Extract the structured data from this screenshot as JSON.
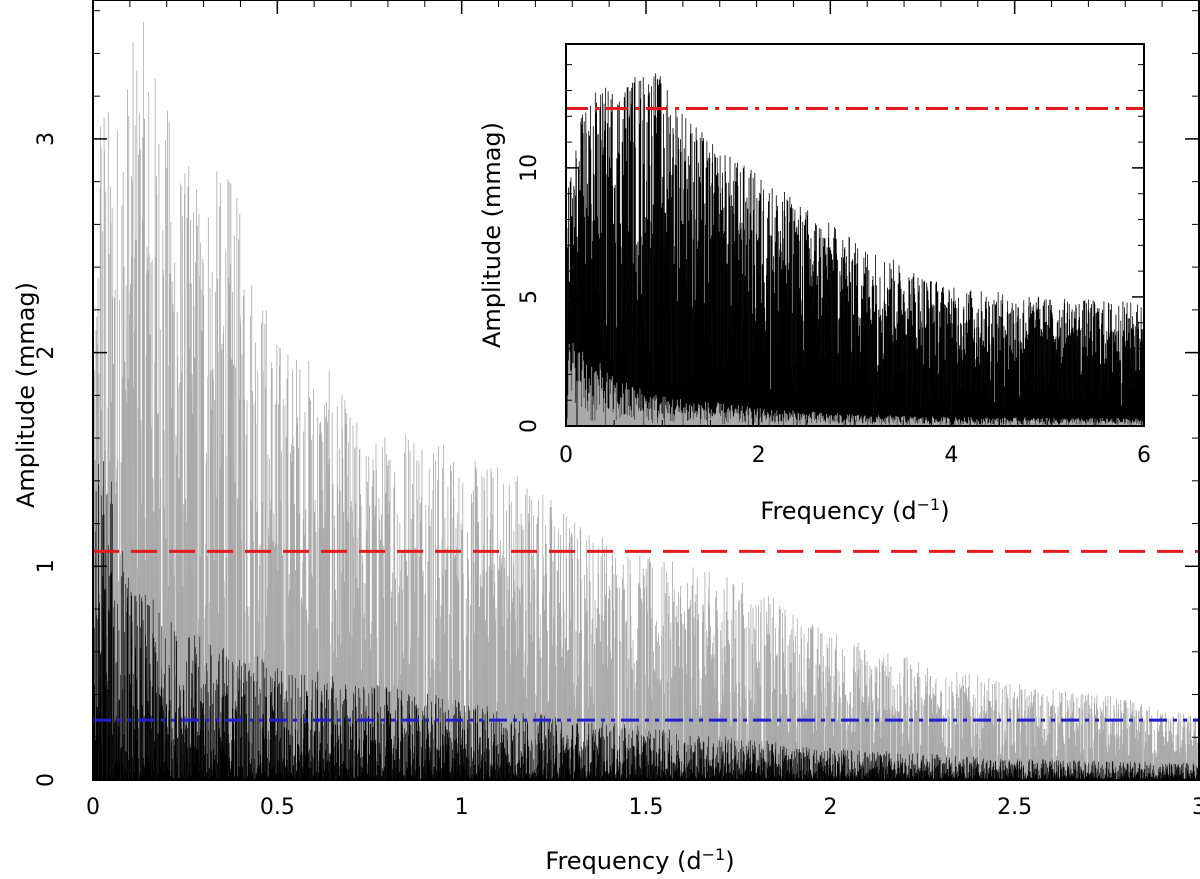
{
  "chart_data": [
    {
      "id": "main",
      "type": "line",
      "title": "",
      "xlabel": "Frequency (d",
      "xlabel_sup": "−1",
      "xlabel_tail": ")",
      "ylabel": "Amplitude (mmag)",
      "xlim": [
        0,
        3
      ],
      "ylim": [
        0,
        3.65
      ],
      "x_ticks": [
        0,
        0.5,
        1,
        1.5,
        2,
        2.5,
        3
      ],
      "x_tick_labels": [
        "0",
        "0.5",
        "1",
        "1.5",
        "2",
        "2.5",
        "3"
      ],
      "y_ticks": [
        0,
        1,
        2,
        3
      ],
      "y_tick_labels": [
        "0",
        "1",
        "2",
        "3"
      ],
      "series": [
        {
          "name": "gray spectrum",
          "color": "#a9a9a9",
          "envelope": [
            {
              "x": 0.0,
              "y": 1.6
            },
            {
              "x": 0.02,
              "y": 3.47
            },
            {
              "x": 0.05,
              "y": 3.1
            },
            {
              "x": 0.13,
              "y": 3.6
            },
            {
              "x": 0.25,
              "y": 2.9
            },
            {
              "x": 0.37,
              "y": 2.86
            },
            {
              "x": 0.5,
              "y": 2.1
            },
            {
              "x": 0.63,
              "y": 1.95
            },
            {
              "x": 0.75,
              "y": 1.6
            },
            {
              "x": 0.88,
              "y": 1.75
            },
            {
              "x": 1.0,
              "y": 1.5
            },
            {
              "x": 1.15,
              "y": 1.5
            },
            {
              "x": 1.3,
              "y": 1.25
            },
            {
              "x": 1.5,
              "y": 1.05
            },
            {
              "x": 1.75,
              "y": 0.95
            },
            {
              "x": 2.0,
              "y": 0.7
            },
            {
              "x": 2.25,
              "y": 0.55
            },
            {
              "x": 2.5,
              "y": 0.45
            },
            {
              "x": 2.75,
              "y": 0.4
            },
            {
              "x": 3.0,
              "y": 0.3
            }
          ]
        },
        {
          "name": "black spectrum",
          "color": "#000000",
          "envelope": [
            {
              "x": 0.0,
              "y": 1.25
            },
            {
              "x": 0.02,
              "y": 1.7
            },
            {
              "x": 0.1,
              "y": 0.95
            },
            {
              "x": 0.25,
              "y": 0.7
            },
            {
              "x": 0.5,
              "y": 0.55
            },
            {
              "x": 0.75,
              "y": 0.45
            },
            {
              "x": 1.0,
              "y": 0.38
            },
            {
              "x": 1.25,
              "y": 0.3
            },
            {
              "x": 1.5,
              "y": 0.25
            },
            {
              "x": 2.0,
              "y": 0.15
            },
            {
              "x": 2.5,
              "y": 0.1
            },
            {
              "x": 3.0,
              "y": 0.08
            }
          ]
        }
      ],
      "threshold_lines": [
        {
          "name": "red dashed threshold",
          "y": 1.07,
          "color": "#e41a1c",
          "style": "dashed"
        },
        {
          "name": "blue dash-dot threshold",
          "y": 0.28,
          "color": "#1f1fd0",
          "style": "dash-dot-dot"
        }
      ]
    },
    {
      "id": "inset",
      "type": "line",
      "title": "",
      "xlabel": "Frequency (d",
      "xlabel_sup": "−1",
      "xlabel_tail": ")",
      "ylabel": "Amplitude (mmag)",
      "xlim": [
        0,
        6
      ],
      "ylim": [
        0,
        14.8
      ],
      "x_ticks": [
        0,
        2,
        4,
        6
      ],
      "x_tick_labels": [
        "0",
        "2",
        "4",
        "6"
      ],
      "y_ticks": [
        0,
        5,
        10
      ],
      "y_tick_labels": [
        "0",
        "5",
        "10"
      ],
      "series": [
        {
          "name": "black spectrum",
          "color": "#000000",
          "envelope": [
            {
              "x": 0.0,
              "y": 9.0
            },
            {
              "x": 0.2,
              "y": 12.8
            },
            {
              "x": 0.9,
              "y": 14.0
            },
            {
              "x": 1.5,
              "y": 11.0
            },
            {
              "x": 2.0,
              "y": 9.8
            },
            {
              "x": 2.5,
              "y": 8.5
            },
            {
              "x": 3.0,
              "y": 7.2
            },
            {
              "x": 3.5,
              "y": 6.3
            },
            {
              "x": 4.0,
              "y": 5.4
            },
            {
              "x": 5.0,
              "y": 5.0
            },
            {
              "x": 6.0,
              "y": 4.8
            }
          ]
        },
        {
          "name": "gray spectrum",
          "color": "#a9a9a9",
          "envelope": [
            {
              "x": 0.0,
              "y": 3.6
            },
            {
              "x": 0.2,
              "y": 3.0
            },
            {
              "x": 0.5,
              "y": 1.9
            },
            {
              "x": 1.0,
              "y": 1.2
            },
            {
              "x": 2.0,
              "y": 0.7
            },
            {
              "x": 3.0,
              "y": 0.45
            },
            {
              "x": 4.0,
              "y": 0.35
            },
            {
              "x": 6.0,
              "y": 0.3
            }
          ]
        }
      ],
      "threshold_lines": [
        {
          "name": "red dash-dot threshold",
          "y": 12.3,
          "color": "#e41a1c",
          "style": "dash-dot"
        }
      ]
    }
  ]
}
